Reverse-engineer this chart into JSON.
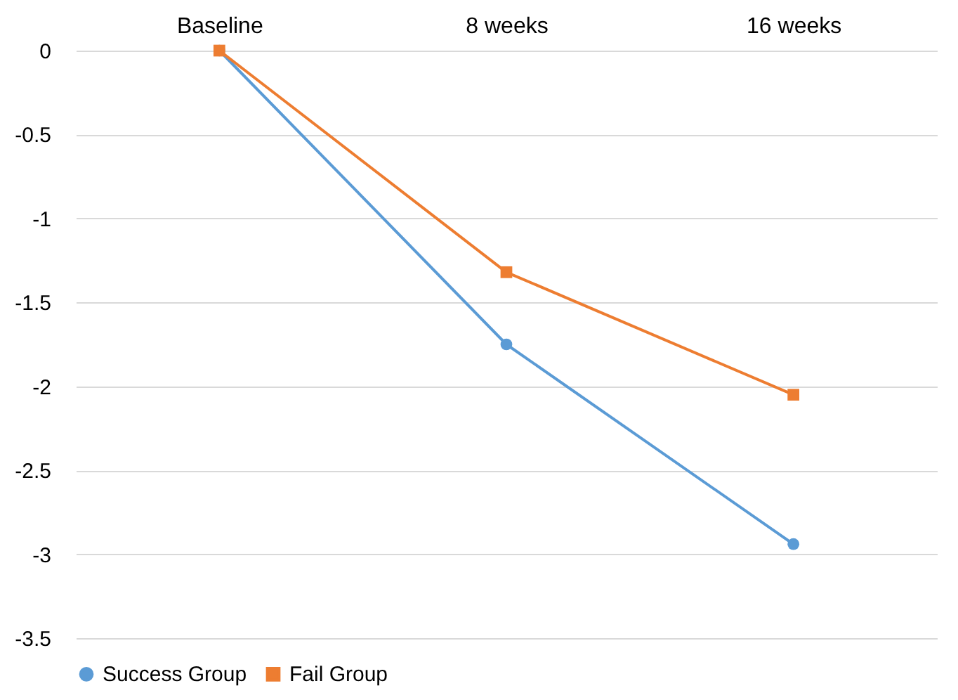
{
  "chart_data": {
    "type": "line",
    "categories": [
      "Baseline",
      "8 weeks",
      "16 weeks"
    ],
    "series": [
      {
        "name": "Success Group",
        "color": "#5b9bd5",
        "marker": "circle",
        "values": [
          0,
          -1.75,
          -2.94
        ]
      },
      {
        "name": "Fail Group",
        "color": "#ed7d31",
        "marker": "square",
        "values": [
          0,
          -1.32,
          -2.05
        ]
      }
    ],
    "ylim": [
      -3.5,
      0
    ],
    "yticks": [
      0,
      -0.5,
      -1,
      -1.5,
      -2,
      -2.5,
      -3,
      -3.5
    ],
    "grid": "y",
    "legend": "bottom"
  }
}
